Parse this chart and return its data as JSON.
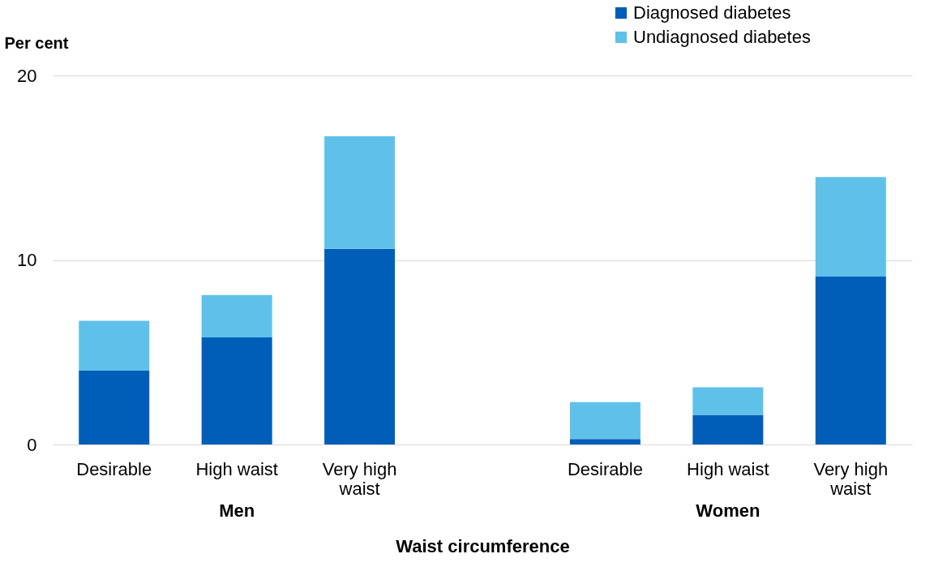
{
  "chart_data": {
    "type": "bar",
    "stacked": true,
    "xlabel": "Waist circumference",
    "ylabel": "Per cent",
    "categories": [
      "Desirable",
      "High waist",
      "Very high waist",
      null,
      "Desirable",
      "High waist",
      "Very high waist"
    ],
    "series": [
      {
        "name": "Diagnosed diabetes",
        "color": "#005eb8",
        "values": [
          4.0,
          5.8,
          10.6,
          null,
          0.3,
          1.6,
          9.1
        ]
      },
      {
        "name": "Undiagnosed diabetes",
        "color": "#5fc1ea",
        "values": [
          2.7,
          2.3,
          6.1,
          null,
          2.0,
          1.5,
          5.4
        ]
      }
    ],
    "ylim": [
      0,
      20
    ],
    "yticks": [
      0,
      10,
      20
    ],
    "grid": "y",
    "legend": "top right",
    "annotations": [
      "Men",
      "Women"
    ]
  }
}
